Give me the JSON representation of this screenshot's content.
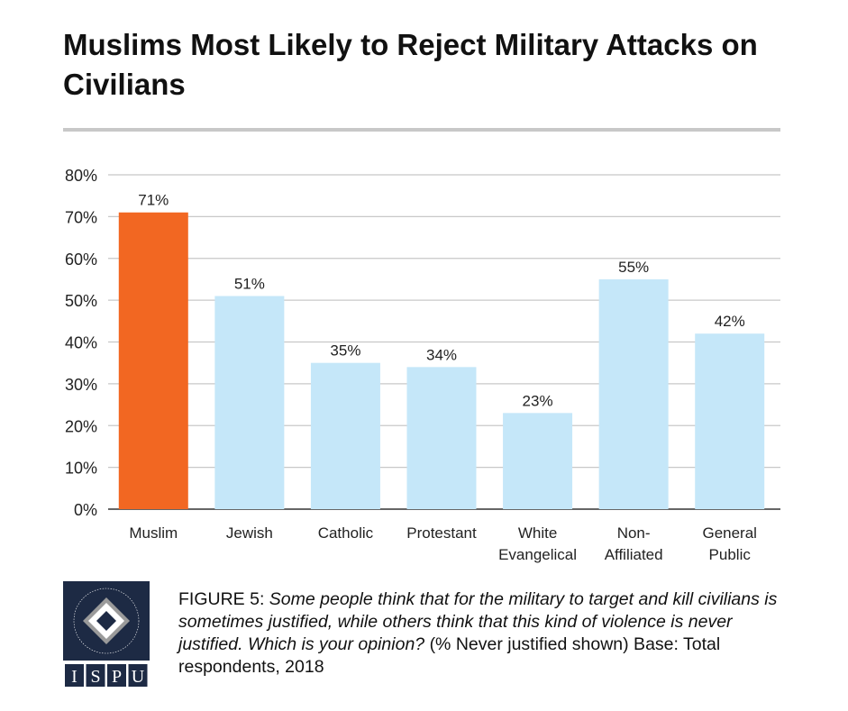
{
  "title": "Muslims Most Likely to Reject Military Attacks on Civilians",
  "chart_data": {
    "type": "bar",
    "title": "Muslims Most Likely to Reject Military Attacks on Civilians",
    "categories": [
      "Muslim",
      "Jewish",
      "Catholic",
      "Protestant",
      "White Evangelical",
      "Non-Affiliated",
      "General Public"
    ],
    "category_lines": [
      [
        "Muslim"
      ],
      [
        "Jewish"
      ],
      [
        "Catholic"
      ],
      [
        "Protestant"
      ],
      [
        "White",
        "Evangelical"
      ],
      [
        "Non-",
        "Affiliated"
      ],
      [
        "General",
        "Public"
      ]
    ],
    "values": [
      71,
      51,
      35,
      34,
      23,
      55,
      42
    ],
    "data_labels": [
      "71%",
      "51%",
      "35%",
      "34%",
      "23%",
      "55%",
      "42%"
    ],
    "yticks": [
      "0%",
      "10%",
      "20%",
      "30%",
      "40%",
      "50%",
      "60%",
      "70%",
      "80%"
    ],
    "ylim": [
      0,
      80
    ],
    "grid": true,
    "colors": {
      "highlight": "#f26722",
      "default": "#c5e7f9",
      "grid": "#c8c8c8"
    },
    "highlight_index": 0
  },
  "caption": {
    "label": "FIGURE 5",
    "question": "Some people think that for the military to target and kill civilians is sometimes justified, while others think that this kind of violence is never justified. Which is your opinion?",
    "note": "(% Never justified shown) Base: Total respondents, 2018"
  },
  "logo": {
    "ring_text": "INSTITUTE FOR SOCIAL POLICY AND UNDERSTANDING",
    "letters": [
      "I",
      "S",
      "P",
      "U"
    ]
  }
}
